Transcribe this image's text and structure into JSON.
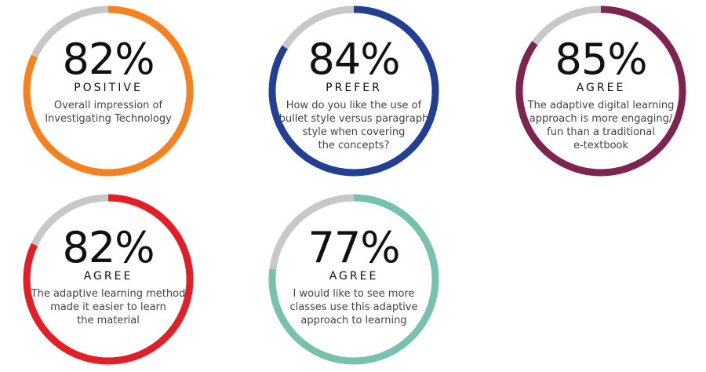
{
  "chart_data": {
    "type": "pie",
    "items": [
      {
        "value": 82,
        "percent_text": "82%",
        "label": "POSITIVE",
        "description_lines": [
          "Overall impression of",
          "Investigating Technology"
        ],
        "color": "#F58220"
      },
      {
        "value": 84,
        "percent_text": "84%",
        "label": "PREFER",
        "description_lines": [
          "How do you like the use of",
          "bullet style versus paragraph",
          "style when covering",
          "the concepts?"
        ],
        "color": "#223F93"
      },
      {
        "value": 85,
        "percent_text": "85%",
        "label": "AGREE",
        "description_lines": [
          "The adaptive digital learning",
          "approach is more engaging/",
          "fun than a traditional",
          "e-textbook"
        ],
        "color": "#7D2451"
      },
      {
        "value": 82,
        "percent_text": "82%",
        "label": "AGREE",
        "description_lines": [
          "The adaptive learning method",
          "made it easier to learn",
          "the material"
        ],
        "color": "#E21E26"
      },
      {
        "value": 77,
        "percent_text": "77%",
        "label": "AGREE",
        "description_lines": [
          "I would like to see more",
          "classes use this adaptive",
          "approach to learning"
        ],
        "color": "#76C2AE"
      }
    ],
    "remainder_color": "#C8C8C8"
  }
}
